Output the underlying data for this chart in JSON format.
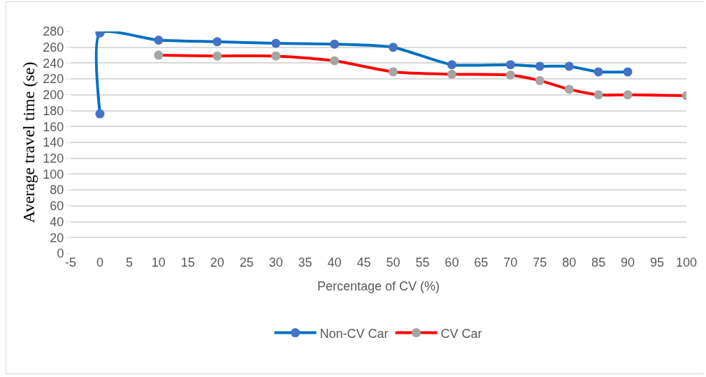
{
  "chart_data": {
    "type": "line",
    "xlabel": "Percentage of CV (%)",
    "ylabel": "Average travel time (se)",
    "xlim": [
      -5,
      100
    ],
    "xticks": [
      -5,
      0,
      5,
      10,
      15,
      20,
      25,
      30,
      35,
      40,
      45,
      50,
      55,
      60,
      65,
      70,
      75,
      80,
      85,
      90,
      95,
      100
    ],
    "ylim": [
      0,
      280
    ],
    "yticks": [
      0,
      20,
      40,
      60,
      80,
      100,
      120,
      140,
      160,
      180,
      200,
      220,
      240,
      260,
      280
    ],
    "grid": "y",
    "legend": "bottom",
    "marker": "circle",
    "line_style": "solid",
    "series": [
      {
        "name": "Non-CV Car",
        "color": "#0070c0",
        "colors": [
          "#4472c4",
          "#4472c4",
          "#4472c4",
          "#4472c4",
          "#4472c4",
          "#4472c4",
          "#4472c4",
          "#4472c4",
          "#4472c4",
          "#4472c4",
          "#4472c4",
          "#4472c4",
          "#4472c4"
        ],
        "x": [
          0,
          0,
          10,
          20,
          30,
          40,
          50,
          60,
          70,
          75,
          80,
          85,
          90
        ],
        "values": [
          176,
          278,
          269,
          267,
          265,
          264,
          260,
          238,
          238,
          236,
          236,
          229,
          229
        ]
      },
      {
        "name": "CV Car",
        "color": "#ff0000",
        "colors": [
          "#a5a5a5",
          "#a5a5a5",
          "#a5a5a5",
          "#a5a5a5",
          "#a5a5a5",
          "#a5a5a5",
          "#a5a5a5",
          "#a5a5a5",
          "#a5a5a5",
          "#a5a5a5",
          "#a5a5a5",
          "#a5a5a5"
        ],
        "x": [
          10,
          20,
          30,
          40,
          50,
          60,
          70,
          75,
          80,
          85,
          90,
          100
        ],
        "values": [
          250,
          249,
          249,
          243,
          229,
          226,
          225,
          218,
          207,
          200,
          200,
          199
        ]
      }
    ]
  }
}
